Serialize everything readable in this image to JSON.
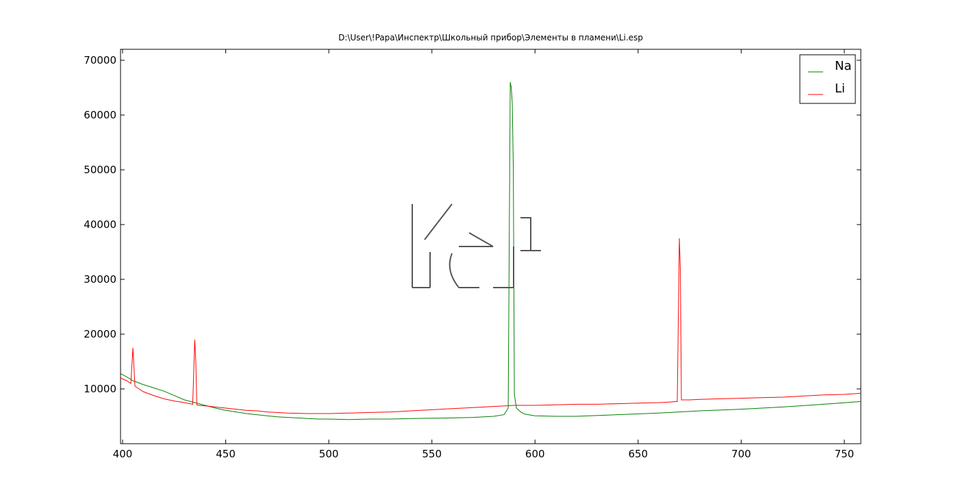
{
  "chart_data": {
    "type": "line",
    "title": "D:\\User\\!Papa\\Инспектр\\Школьный прибор\\Элементы в пламени\\Li.esp",
    "xlabel": "",
    "ylabel": "",
    "xlim": [
      399,
      758
    ],
    "ylim": [
      0,
      72000
    ],
    "x_ticks": [
      400,
      450,
      500,
      550,
      600,
      650,
      700,
      750
    ],
    "y_ticks": [
      10000,
      20000,
      30000,
      40000,
      50000,
      60000,
      70000
    ],
    "grid": false,
    "legend_position": "top-right",
    "series": [
      {
        "name": "Na",
        "color": "#007f00",
        "x": [
          399,
          402,
          405,
          410,
          415,
          420,
          425,
          430,
          435,
          440,
          445,
          450,
          455,
          460,
          465,
          470,
          475,
          480,
          485,
          490,
          495,
          500,
          505,
          510,
          520,
          530,
          540,
          550,
          560,
          570,
          580,
          585,
          587,
          588,
          588.5,
          589,
          589.5,
          590,
          591,
          593,
          595,
          600,
          610,
          620,
          640,
          660,
          670,
          680,
          700,
          720,
          740,
          758
        ],
        "y": [
          12800,
          12200,
          11500,
          10800,
          10200,
          9600,
          8800,
          8000,
          7500,
          7000,
          6500,
          6100,
          5800,
          5500,
          5300,
          5100,
          4900,
          4800,
          4700,
          4600,
          4500,
          4500,
          4450,
          4400,
          4500,
          4500,
          4600,
          4650,
          4700,
          4800,
          5000,
          5300,
          6500,
          66000,
          65000,
          62000,
          50000,
          9000,
          6500,
          5800,
          5400,
          5100,
          5000,
          5000,
          5300,
          5600,
          5800,
          6000,
          6300,
          6700,
          7200,
          7700
        ]
      },
      {
        "name": "Li",
        "color": "#ff0000",
        "x": [
          399,
          402,
          404,
          405,
          406,
          408,
          410,
          415,
          420,
          425,
          430,
          434,
          435,
          435.5,
          436,
          437,
          440,
          445,
          450,
          455,
          460,
          465,
          470,
          480,
          490,
          500,
          510,
          520,
          530,
          540,
          550,
          560,
          570,
          580,
          590,
          600,
          610,
          620,
          630,
          640,
          650,
          660,
          665,
          669,
          670,
          670.5,
          671,
          672,
          675,
          680,
          690,
          700,
          710,
          720,
          730,
          740,
          750,
          758
        ],
        "y": [
          12000,
          11500,
          11000,
          17500,
          10500,
          10000,
          9500,
          8800,
          8200,
          7800,
          7500,
          7200,
          19000,
          15000,
          7100,
          7000,
          6900,
          6700,
          6500,
          6300,
          6100,
          6000,
          5800,
          5600,
          5500,
          5500,
          5600,
          5700,
          5800,
          6000,
          6200,
          6400,
          6600,
          6800,
          7000,
          7000,
          7100,
          7200,
          7200,
          7300,
          7400,
          7500,
          7600,
          7700,
          37500,
          32000,
          8000,
          8000,
          8000,
          8100,
          8200,
          8300,
          8400,
          8500,
          8700,
          8900,
          9000,
          9200
        ]
      }
    ]
  }
}
